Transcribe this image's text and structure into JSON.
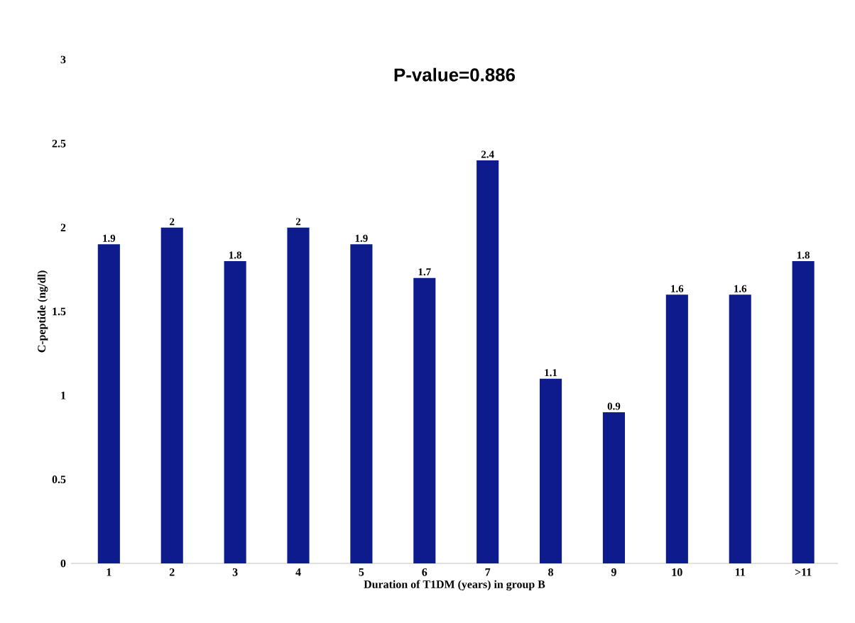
{
  "chart_data": {
    "type": "bar",
    "title": "P-value=0.886",
    "xlabel": "Duration of T1DM (years) in group B",
    "ylabel": "C-peptide (ng/dl)",
    "categories": [
      "1",
      "2",
      "3",
      "4",
      "5",
      "6",
      "7",
      "8",
      "9",
      "10",
      "11",
      ">11"
    ],
    "values": [
      1.9,
      2,
      1.8,
      2,
      1.9,
      1.7,
      2.4,
      1.1,
      0.9,
      1.6,
      1.6,
      1.8
    ],
    "color": "#0d1b8c",
    "ylim": [
      0,
      3
    ],
    "yticks": [
      0,
      0.5,
      1,
      1.5,
      2,
      2.5,
      3
    ],
    "data_labels": true,
    "grid": false
  }
}
